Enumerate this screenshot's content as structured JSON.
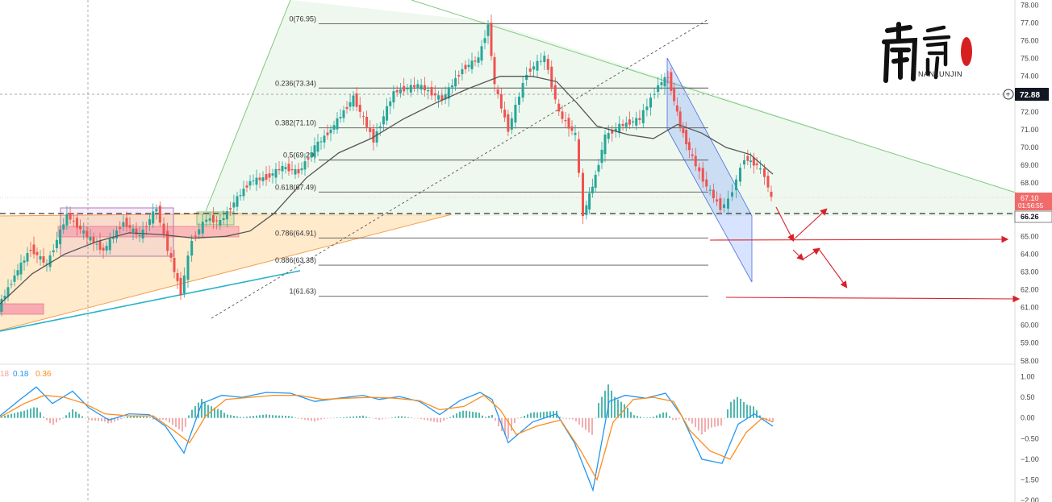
{
  "chart_data": {
    "type": "line",
    "price_axis": {
      "ticks": [
        "78.00",
        "77.00",
        "76.00",
        "75.00",
        "74.00",
        "73.00",
        "72.00",
        "71.00",
        "70.00",
        "69.00",
        "68.00",
        "67.00",
        "66.00",
        "65.00",
        "64.00",
        "63.00",
        "62.00",
        "61.00",
        "60.00",
        "59.00",
        "58.00"
      ],
      "range": [
        57.9,
        78.2
      ]
    },
    "macd_axis": {
      "ticks": [
        "1.00",
        "0.50",
        "0.00",
        "−0.50",
        "−1.00",
        "−1.50",
        "−2.00"
      ],
      "range": [
        -2.0,
        1.05
      ]
    },
    "price_labels": {
      "crosshair": "72.88",
      "current": "67.10",
      "countdown": "01:56:55",
      "support": "66.26"
    },
    "macd_legend": {
      "v1": "18",
      "v2": "0.18",
      "v3": "0.36"
    },
    "fibonacci": [
      {
        "level": "0",
        "price": 76.95,
        "label": "0(76.95)"
      },
      {
        "level": "0.236",
        "price": 73.34,
        "label": "0.236(73.34)"
      },
      {
        "level": "0.382",
        "price": 71.1,
        "label": "0.382(71.10)"
      },
      {
        "level": "0.5",
        "price": 69.29,
        "label": "0.5(69.29)"
      },
      {
        "level": "0.618",
        "price": 67.49,
        "label": "0.618(67.49)"
      },
      {
        "level": "0.786",
        "price": 64.91,
        "label": "0.786(64.91)"
      },
      {
        "level": "0.886",
        "price": 63.38,
        "label": "0.886(63.38)"
      },
      {
        "level": "1",
        "price": 61.63,
        "label": "1(61.63)"
      }
    ],
    "price_series": [
      [
        0,
        61.0
      ],
      [
        20,
        62.8
      ],
      [
        40,
        64.3
      ],
      [
        60,
        63.4
      ],
      [
        85,
        66.2
      ],
      [
        110,
        65.0
      ],
      [
        130,
        64.2
      ],
      [
        155,
        65.8
      ],
      [
        175,
        65.0
      ],
      [
        196,
        66.6
      ],
      [
        210,
        64.3
      ],
      [
        226,
        61.8
      ],
      [
        240,
        64.8
      ],
      [
        258,
        66.0
      ],
      [
        275,
        65.8
      ],
      [
        292,
        66.9
      ],
      [
        312,
        68.1
      ],
      [
        332,
        68.3
      ],
      [
        352,
        68.9
      ],
      [
        372,
        68.6
      ],
      [
        392,
        70.0
      ],
      [
        412,
        71.0
      ],
      [
        440,
        72.8
      ],
      [
        465,
        70.4
      ],
      [
        490,
        73.1
      ],
      [
        520,
        73.5
      ],
      [
        550,
        72.7
      ],
      [
        575,
        74.4
      ],
      [
        595,
        75.0
      ],
      [
        607,
        76.9
      ],
      [
        615,
        73.5
      ],
      [
        632,
        71.0
      ],
      [
        655,
        74.2
      ],
      [
        677,
        75.1
      ],
      [
        695,
        71.9
      ],
      [
        715,
        70.7
      ],
      [
        725,
        66.2
      ],
      [
        740,
        68.4
      ],
      [
        752,
        70.6
      ],
      [
        770,
        71.2
      ],
      [
        795,
        71.6
      ],
      [
        818,
        73.5
      ],
      [
        830,
        74.0
      ],
      [
        845,
        71.2
      ],
      [
        860,
        69.4
      ],
      [
        878,
        67.8
      ],
      [
        895,
        66.6
      ],
      [
        905,
        67.0
      ],
      [
        915,
        68.2
      ],
      [
        925,
        69.4
      ],
      [
        940,
        69.0
      ],
      [
        950,
        68.4
      ],
      [
        958,
        67.1
      ]
    ],
    "ma_series": [
      [
        0,
        61.2
      ],
      [
        40,
        62.9
      ],
      [
        80,
        64.0
      ],
      [
        120,
        64.7
      ],
      [
        160,
        65.2
      ],
      [
        200,
        65.1
      ],
      [
        240,
        64.9
      ],
      [
        280,
        65.0
      ],
      [
        310,
        65.3
      ],
      [
        340,
        66.3
      ],
      [
        380,
        68.3
      ],
      [
        420,
        69.7
      ],
      [
        460,
        70.5
      ],
      [
        500,
        71.6
      ],
      [
        540,
        72.5
      ],
      [
        580,
        73.3
      ],
      [
        620,
        74.0
      ],
      [
        660,
        74.0
      ],
      [
        690,
        73.7
      ],
      [
        715,
        72.5
      ],
      [
        740,
        71.2
      ],
      [
        780,
        70.7
      ],
      [
        810,
        70.5
      ],
      [
        840,
        71.3
      ],
      [
        870,
        70.8
      ],
      [
        900,
        70.0
      ],
      [
        930,
        69.6
      ],
      [
        958,
        68.5
      ]
    ],
    "macd_series": [
      [
        0,
        0.05
      ],
      [
        25,
        0.45
      ],
      [
        45,
        0.75
      ],
      [
        65,
        0.35
      ],
      [
        90,
        0.65
      ],
      [
        110,
        0.25
      ],
      [
        135,
        -0.05
      ],
      [
        160,
        0.1
      ],
      [
        185,
        0.08
      ],
      [
        205,
        -0.2
      ],
      [
        228,
        -0.85
      ],
      [
        250,
        0.35
      ],
      [
        275,
        0.55
      ],
      [
        300,
        0.5
      ],
      [
        330,
        0.62
      ],
      [
        360,
        0.6
      ],
      [
        390,
        0.4
      ],
      [
        420,
        0.48
      ],
      [
        450,
        0.55
      ],
      [
        470,
        0.45
      ],
      [
        495,
        0.52
      ],
      [
        520,
        0.4
      ],
      [
        545,
        0.08
      ],
      [
        570,
        0.42
      ],
      [
        595,
        0.62
      ],
      [
        610,
        0.45
      ],
      [
        630,
        -0.6
      ],
      [
        660,
        -0.1
      ],
      [
        690,
        0.1
      ],
      [
        712,
        -0.6
      ],
      [
        735,
        -1.75
      ],
      [
        755,
        0.4
      ],
      [
        775,
        0.55
      ],
      [
        800,
        0.48
      ],
      [
        825,
        0.6
      ],
      [
        845,
        0.05
      ],
      [
        870,
        -1.0
      ],
      [
        895,
        -1.1
      ],
      [
        915,
        -0.15
      ],
      [
        935,
        0.1
      ],
      [
        958,
        -0.2
      ]
    ],
    "signal_series": [
      [
        0,
        0.02
      ],
      [
        30,
        0.35
      ],
      [
        55,
        0.55
      ],
      [
        80,
        0.5
      ],
      [
        105,
        0.35
      ],
      [
        130,
        0.1
      ],
      [
        160,
        0.05
      ],
      [
        190,
        0.05
      ],
      [
        215,
        -0.3
      ],
      [
        235,
        -0.6
      ],
      [
        255,
        0.05
      ],
      [
        280,
        0.45
      ],
      [
        310,
        0.5
      ],
      [
        340,
        0.55
      ],
      [
        370,
        0.55
      ],
      [
        400,
        0.45
      ],
      [
        430,
        0.48
      ],
      [
        460,
        0.5
      ],
      [
        490,
        0.48
      ],
      [
        520,
        0.42
      ],
      [
        545,
        0.2
      ],
      [
        575,
        0.28
      ],
      [
        600,
        0.55
      ],
      [
        620,
        0.2
      ],
      [
        640,
        -0.4
      ],
      [
        665,
        -0.2
      ],
      [
        695,
        -0.05
      ],
      [
        720,
        -0.8
      ],
      [
        740,
        -1.5
      ],
      [
        760,
        -0.1
      ],
      [
        785,
        0.45
      ],
      [
        810,
        0.5
      ],
      [
        835,
        0.4
      ],
      [
        855,
        -0.3
      ],
      [
        880,
        -0.8
      ],
      [
        905,
        -1.0
      ],
      [
        925,
        -0.35
      ],
      [
        945,
        0.0
      ],
      [
        958,
        -0.1
      ]
    ],
    "annotations": {
      "logo_text": "NANLUNJIN"
    }
  }
}
